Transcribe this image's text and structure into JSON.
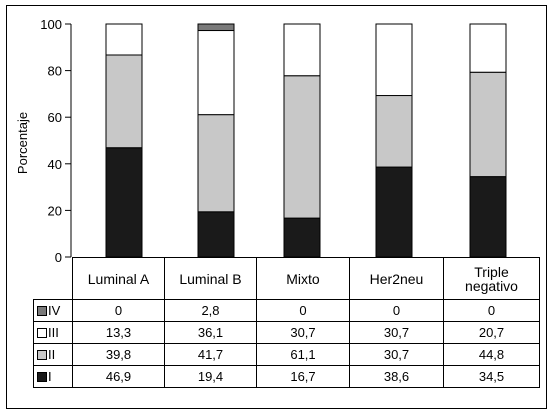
{
  "chart_data": {
    "type": "bar",
    "stacked": true,
    "ylabel": "Porcentaje",
    "ylim": [
      0,
      100
    ],
    "yticks": [
      0,
      20,
      40,
      60,
      80,
      100
    ],
    "categories": [
      "Luminal A",
      "Luminal B",
      "Mixto",
      "Her2neu",
      "Triple negativo"
    ],
    "series": [
      {
        "name": "I",
        "color": "#1a1a1a",
        "values": [
          46.9,
          19.4,
          16.7,
          38.6,
          34.5
        ]
      },
      {
        "name": "II",
        "color": "#c8c8c8",
        "values": [
          39.8,
          41.7,
          61.1,
          30.7,
          44.8
        ]
      },
      {
        "name": "III",
        "color": "#ffffff",
        "values": [
          13.3,
          36.1,
          30.7,
          30.7,
          20.7
        ]
      },
      {
        "name": "IV",
        "color": "#7a7a7a",
        "values": [
          0,
          2.8,
          0,
          0,
          0
        ]
      }
    ],
    "table_rows": [
      {
        "label": "IV",
        "color": "#7a7a7a",
        "values": [
          "0",
          "2,8",
          "0",
          "0",
          "0"
        ]
      },
      {
        "label": "III",
        "color": "#ffffff",
        "values": [
          "13,3",
          "36,1",
          "30,7",
          "30,7",
          "20,7"
        ]
      },
      {
        "label": "II",
        "color": "#c8c8c8",
        "values": [
          "39,8",
          "41,7",
          "61,1",
          "30,7",
          "44,8"
        ]
      },
      {
        "label": "I",
        "color": "#1a1a1a",
        "values": [
          "46,9",
          "19,4",
          "16,7",
          "38,6",
          "34,5"
        ]
      }
    ]
  }
}
